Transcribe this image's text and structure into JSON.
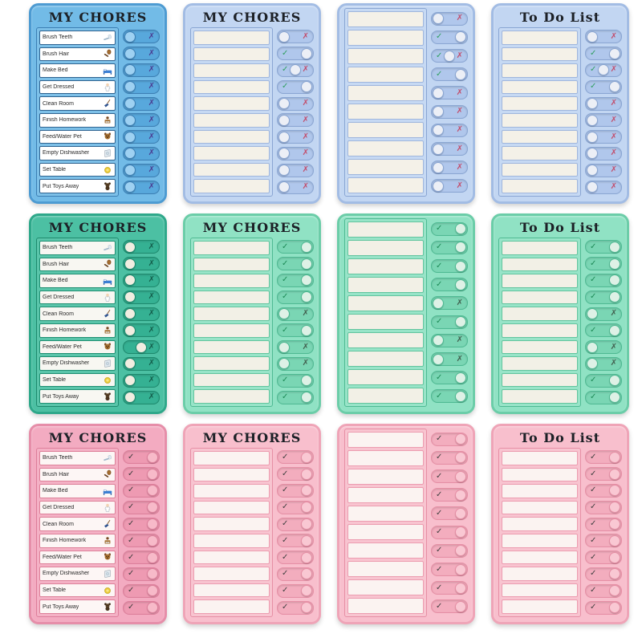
{
  "page": {
    "background": "#ffffff"
  },
  "titles": {
    "my_chores": "MY CHORES",
    "to_do_list": "To Do List"
  },
  "glyphs": {
    "check": "✓",
    "x": "✗"
  },
  "chores": [
    {
      "label": "Brush Teeth",
      "icon": "toothbrush-icon"
    },
    {
      "label": "Brush Hair",
      "icon": "hairbrush-icon"
    },
    {
      "label": "Make Bed",
      "icon": "bed-icon"
    },
    {
      "label": "Get Dressed",
      "icon": "get-dressed-icon"
    },
    {
      "label": "Clean Room",
      "icon": "broom-icon"
    },
    {
      "label": "Finish Homework",
      "icon": "homework-icon"
    },
    {
      "label": "Feed/Water Pet",
      "icon": "pet-icon"
    },
    {
      "label": "Empty Dishwasher",
      "icon": "dishes-icon"
    },
    {
      "label": "Set Table",
      "icon": "plate-icon"
    },
    {
      "label": "Put Toys Away",
      "icon": "teddy-bear-icon"
    }
  ],
  "themes": {
    "blue-dark": {
      "face": "#72bbe7",
      "edge": "#4d9bd2",
      "row": "#ffffff",
      "rowBorder": "#2e6390",
      "track": "#58a8dc",
      "trackBorder": "#3c7fb4",
      "knob": "#9ed1f2",
      "check": "#2f9e5f",
      "x": "#4a3f93"
    },
    "blue-light": {
      "face": "#c2d6f2",
      "edge": "#a2bce4",
      "row": "#f4f1e8",
      "rowBorder": "#9fb6dd",
      "track": "#b0c7ec",
      "trackBorder": "#8aa6d3",
      "knob": "#eceff6",
      "check": "#2f9e5f",
      "x": "#c24f6d"
    },
    "green-dark": {
      "face": "#4cc0a3",
      "edge": "#2ea88a",
      "row": "#f8f7f2",
      "rowBorder": "#1f8f72",
      "track": "#35b193",
      "trackBorder": "#1e8a6e",
      "knob": "#f1ede1",
      "check": "#14705a",
      "x": "#145f4c"
    },
    "green-light": {
      "face": "#90e2c4",
      "edge": "#6bcda8",
      "row": "#f2f0e6",
      "rowBorder": "#62c49e",
      "track": "#7ad6b4",
      "trackBorder": "#4fba93",
      "knob": "#def1e6",
      "check": "#1d8a56",
      "x": "#42604f"
    },
    "pink-dark": {
      "face": "#f3abc1",
      "edge": "#e68ea9",
      "row": "#fdf6f5",
      "rowBorder": "#dd8099",
      "track": "#ee9ab2",
      "trackBorder": "#dd7f9b",
      "knob": "#f7bac9",
      "check": "#3b3b3b",
      "x": "#3b3b3b"
    },
    "pink-light": {
      "face": "#f8bfcd",
      "edge": "#efa4b7",
      "row": "#fbf3f1",
      "rowBorder": "#ec9cb0",
      "track": "#f3adbe",
      "trackBorder": "#e68fa5",
      "knob": "#f9c8d3",
      "check": "#404040",
      "x": "#404040"
    }
  },
  "boards": [
    {
      "name": "blue-my-chores-labeled",
      "theme": "blue-dark",
      "title": "MY CHORES",
      "labeled": true,
      "states": [
        "x",
        "x",
        "x",
        "x",
        "x",
        "x",
        "x",
        "x",
        "x",
        "x"
      ]
    },
    {
      "name": "blue-my-chores-blank",
      "theme": "blue-light",
      "title": "MY CHORES",
      "labeled": false,
      "states": [
        "x",
        "check",
        "mid",
        "check",
        "x",
        "x",
        "x",
        "x",
        "x",
        "x"
      ]
    },
    {
      "name": "blue-untitled-blank",
      "theme": "blue-light",
      "title": "",
      "labeled": false,
      "states": [
        "x",
        "check",
        "mid",
        "check",
        "x",
        "x",
        "x",
        "x",
        "x",
        "x"
      ]
    },
    {
      "name": "blue-to-do-list",
      "theme": "blue-light",
      "title": "To Do List",
      "labeled": false,
      "states": [
        "x",
        "check",
        "mid",
        "check",
        "x",
        "x",
        "x",
        "x",
        "x",
        "x"
      ]
    },
    {
      "name": "green-my-chores-labeled",
      "theme": "green-dark",
      "title": "MY CHORES",
      "labeled": true,
      "states": [
        "x",
        "x",
        "x",
        "x",
        "x",
        "x",
        "midx",
        "x",
        "x",
        "x"
      ]
    },
    {
      "name": "green-my-chores-blank",
      "theme": "green-light",
      "title": "MY CHORES",
      "labeled": false,
      "states": [
        "check",
        "check",
        "check",
        "check",
        "x",
        "check",
        "x",
        "x",
        "check",
        "check"
      ]
    },
    {
      "name": "green-untitled-blank",
      "theme": "green-light",
      "title": "",
      "labeled": false,
      "states": [
        "check",
        "check",
        "check",
        "check",
        "x",
        "check",
        "x",
        "x",
        "check",
        "check"
      ]
    },
    {
      "name": "green-to-do-list",
      "theme": "green-light",
      "title": "To Do List",
      "labeled": false,
      "states": [
        "check",
        "check",
        "check",
        "check",
        "x",
        "check",
        "x",
        "x",
        "check",
        "check"
      ]
    },
    {
      "name": "pink-my-chores-labeled",
      "theme": "pink-dark",
      "title": "MY CHORES",
      "labeled": true,
      "states": [
        "check",
        "check",
        "check",
        "check",
        "check",
        "check",
        "check",
        "check",
        "check",
        "check"
      ]
    },
    {
      "name": "pink-my-chores-blank",
      "theme": "pink-light",
      "title": "MY CHORES",
      "labeled": false,
      "states": [
        "check",
        "check",
        "check",
        "check",
        "check",
        "check",
        "check",
        "check",
        "check",
        "check"
      ]
    },
    {
      "name": "pink-untitled-blank",
      "theme": "pink-light",
      "title": "",
      "labeled": false,
      "states": [
        "check",
        "check",
        "check",
        "check",
        "check",
        "check",
        "check",
        "check",
        "check",
        "check"
      ]
    },
    {
      "name": "pink-to-do-list",
      "theme": "pink-light",
      "title": "To Do List",
      "labeled": false,
      "states": [
        "check",
        "check",
        "check",
        "check",
        "check",
        "check",
        "check",
        "check",
        "check",
        "check"
      ]
    }
  ]
}
